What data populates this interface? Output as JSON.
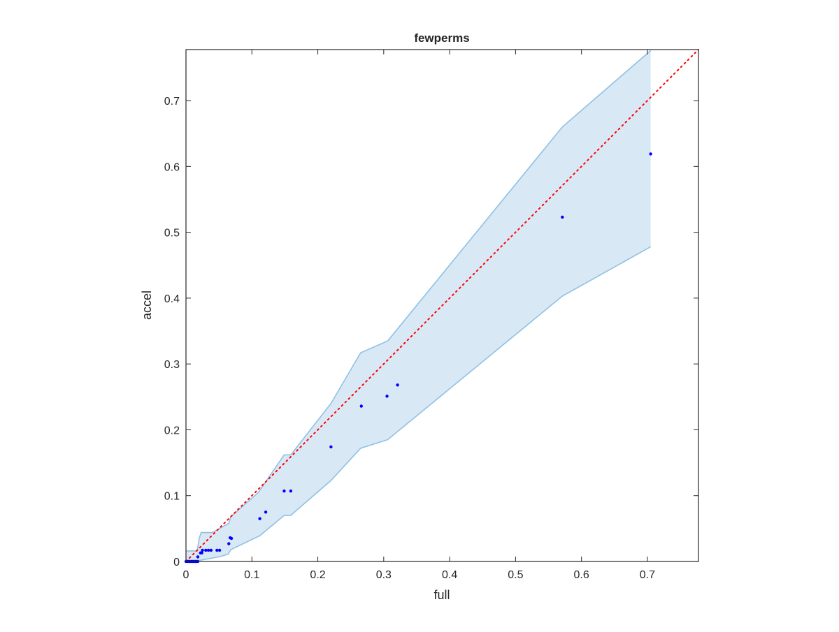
{
  "chart_data": {
    "type": "scatter",
    "title": "fewperms",
    "xlabel": "full",
    "ylabel": "accel",
    "xlim": [
      0,
      0.7775
    ],
    "ylim": [
      0,
      0.7775
    ],
    "xticks": [
      0,
      0.1,
      0.2,
      0.3,
      0.4,
      0.5,
      0.6,
      0.7
    ],
    "yticks": [
      0,
      0.1,
      0.2,
      0.3,
      0.4,
      0.5,
      0.6,
      0.7
    ],
    "xtick_labels": [
      "0",
      "0.1",
      "0.2",
      "0.3",
      "0.4",
      "0.5",
      "0.6",
      "0.7"
    ],
    "ytick_labels": [
      "0",
      "0.1",
      "0.2",
      "0.3",
      "0.4",
      "0.5",
      "0.6",
      "0.7"
    ],
    "grid": false,
    "colors": {
      "points": "#0000ff",
      "band_fill": "#d9e8f5",
      "band_edge": "#8ec1e3",
      "diagonal": "#ff0000"
    },
    "points": [
      [
        0.705,
        0.619
      ],
      [
        0.571,
        0.523
      ],
      [
        0.321,
        0.268
      ],
      [
        0.305,
        0.251
      ],
      [
        0.266,
        0.236
      ],
      [
        0.22,
        0.174
      ],
      [
        0.159,
        0.107
      ],
      [
        0.149,
        0.107
      ],
      [
        0.121,
        0.075
      ],
      [
        0.112,
        0.065
      ],
      [
        0.069,
        0.035
      ],
      [
        0.067,
        0.036
      ],
      [
        0.065,
        0.027
      ],
      [
        0.025,
        0.017
      ],
      [
        0.03,
        0.017
      ],
      [
        0.034,
        0.017
      ],
      [
        0.038,
        0.017
      ],
      [
        0.047,
        0.017
      ],
      [
        0.051,
        0.017
      ],
      [
        0.022,
        0.013
      ],
      [
        0.024,
        0.013
      ],
      [
        0.018,
        0.007
      ],
      [
        0.0,
        0.0
      ],
      [
        0.002,
        0.0
      ],
      [
        0.004,
        0.0
      ],
      [
        0.006,
        0.0
      ],
      [
        0.008,
        0.0
      ],
      [
        0.01,
        0.0
      ],
      [
        0.012,
        0.0
      ],
      [
        0.014,
        0.0
      ],
      [
        0.016,
        0.0
      ],
      [
        0.018,
        0.0
      ]
    ],
    "band_upper": [
      [
        0,
        0.016
      ],
      [
        0.017,
        0.016
      ],
      [
        0.018,
        0.022
      ],
      [
        0.02,
        0.035
      ],
      [
        0.023,
        0.044
      ],
      [
        0.04,
        0.044
      ],
      [
        0.065,
        0.058
      ],
      [
        0.068,
        0.068
      ],
      [
        0.11,
        0.105
      ],
      [
        0.149,
        0.162
      ],
      [
        0.159,
        0.162
      ],
      [
        0.22,
        0.24
      ],
      [
        0.265,
        0.317
      ],
      [
        0.306,
        0.335
      ],
      [
        0.571,
        0.66
      ],
      [
        0.705,
        0.776
      ]
    ],
    "band_lower": [
      [
        0,
        0.001
      ],
      [
        0.017,
        0.001
      ],
      [
        0.05,
        0.007
      ],
      [
        0.064,
        0.011
      ],
      [
        0.068,
        0.018
      ],
      [
        0.112,
        0.039
      ],
      [
        0.149,
        0.07
      ],
      [
        0.159,
        0.07
      ],
      [
        0.22,
        0.123
      ],
      [
        0.265,
        0.172
      ],
      [
        0.306,
        0.185
      ],
      [
        0.571,
        0.403
      ],
      [
        0.705,
        0.478
      ]
    ],
    "reference_line": "y = x"
  }
}
